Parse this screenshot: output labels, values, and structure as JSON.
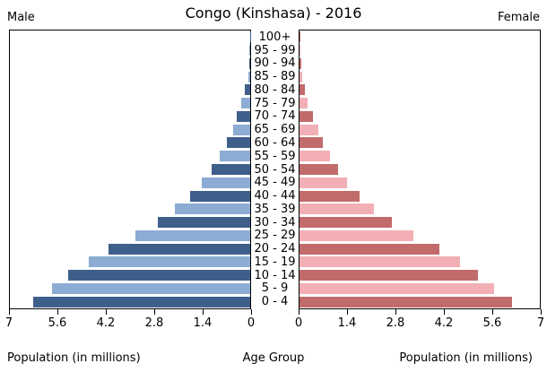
{
  "title": "Congo (Kinshasa) - 2016",
  "left_header": "Male",
  "right_header": "Female",
  "bottom_labels": {
    "left": "Population (in millions)",
    "center": "Age Group",
    "right": "Population (in millions)"
  },
  "chart_data": {
    "type": "bar",
    "subtype": "population-pyramid",
    "title": "Congo (Kinshasa) - 2016",
    "center_axis_label": "Age Group",
    "xlabel": "Population (in millions)",
    "grid": false,
    "legend_position": "none",
    "age_groups_top_to_bottom": [
      "100+",
      "95 - 99",
      "90 - 94",
      "85 - 89",
      "80 - 84",
      "75 - 79",
      "70 - 74",
      "65 - 69",
      "60 - 64",
      "55 - 59",
      "50 - 54",
      "45 - 49",
      "40 - 44",
      "35 - 39",
      "30 - 34",
      "25 - 29",
      "20 - 24",
      "15 - 19",
      "10 - 14",
      "5 - 9",
      "0 - 4"
    ],
    "series": [
      {
        "name": "Male",
        "side": "left",
        "unit": "millions",
        "values_top_to_bottom": [
          0.01,
          0.02,
          0.03,
          0.06,
          0.15,
          0.25,
          0.38,
          0.5,
          0.68,
          0.9,
          1.13,
          1.42,
          1.75,
          2.2,
          2.7,
          3.34,
          4.12,
          4.69,
          5.29,
          5.78,
          6.33
        ]
      },
      {
        "name": "Female",
        "side": "right",
        "unit": "millions",
        "values_top_to_bottom": [
          0.01,
          0.02,
          0.04,
          0.08,
          0.16,
          0.23,
          0.4,
          0.54,
          0.68,
          0.9,
          1.13,
          1.38,
          1.75,
          2.18,
          2.69,
          3.31,
          4.08,
          4.67,
          5.21,
          5.66,
          6.2
        ]
      }
    ],
    "x_axis": {
      "max": 7,
      "min": 0,
      "ticks_left_to_right_left_panel": [
        "7",
        "5.6",
        "4.2",
        "2.8",
        "1.4",
        "0"
      ],
      "ticks_left_to_right_right_panel": [
        "0",
        "1.4",
        "2.8",
        "4.2",
        "5.6",
        "7"
      ]
    },
    "colors": {
      "male_dark": "#3E5F8A",
      "male_light": "#8CACD4",
      "female_dark": "#C26B6B",
      "female_light": "#F2AFB6",
      "axis": "#000000",
      "background": "#FFFFFF"
    }
  }
}
